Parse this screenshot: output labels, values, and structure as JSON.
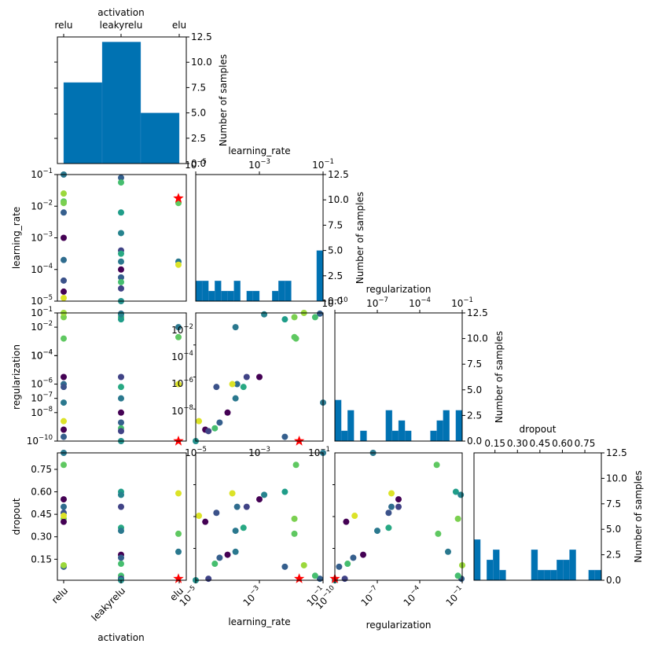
{
  "figure": {
    "type": "pairplot",
    "point_colormap": "viridis",
    "best_marker": "red-star",
    "bar_color": "#0072B2",
    "best_color": "#ff0000"
  },
  "params": {
    "activation": {
      "label": "activation",
      "categories": [
        "relu",
        "leakyrelu",
        "elu"
      ]
    },
    "learning_rate": {
      "label": "learning_rate",
      "scale": "log",
      "lim": [
        -5,
        -1
      ],
      "ticks": [
        -5,
        -3,
        -1
      ]
    },
    "regularization": {
      "label": "regularization",
      "scale": "log",
      "lim": [
        -10,
        -1
      ],
      "ticks": [
        -10,
        -7,
        -4,
        -1
      ]
    },
    "dropout": {
      "label": "dropout",
      "scale": "linear",
      "lim": [
        0.01,
        0.86
      ],
      "ticks": [
        "0.15",
        "0.30",
        "0.45",
        "0.60",
        "0.75"
      ]
    }
  },
  "hist_axis": {
    "label": "Number of samples",
    "ticks": [
      "0.0",
      "2.5",
      "5.0",
      "7.5",
      "10.0",
      "12.5"
    ],
    "ylim": [
      0,
      12.5
    ]
  },
  "chart_data": [
    {
      "type": "bar",
      "panel": "activation-histogram",
      "categories": [
        "relu",
        "leakyrelu",
        "elu"
      ],
      "values": [
        8,
        12,
        5
      ],
      "xlabel": "activation",
      "ylabel": "Number of samples",
      "ylim": [
        0,
        12.5
      ]
    },
    {
      "type": "bar",
      "panel": "learning_rate-histogram",
      "bin_edges_log10": [
        -5,
        -4.8,
        -4.6,
        -4.4,
        -4.2,
        -4,
        -3.8,
        -3.6,
        -3.4,
        -3.2,
        -3,
        -2.8,
        -2.6,
        -2.4,
        -2.2,
        -2,
        -1.8,
        -1.6,
        -1.4,
        -1.2,
        -1
      ],
      "values": [
        2,
        2,
        1,
        2,
        1,
        1,
        2,
        0,
        1,
        1,
        0,
        0,
        1,
        2,
        2,
        0,
        0,
        0,
        0,
        5
      ],
      "xlabel": "learning_rate",
      "ylabel": "Number of samples",
      "ylim": [
        0,
        12.5
      ]
    },
    {
      "type": "bar",
      "panel": "regularization-histogram",
      "bin_edges_log10": [
        -10,
        -9.55,
        -9.1,
        -8.65,
        -8.2,
        -7.75,
        -7.3,
        -6.85,
        -6.4,
        -5.95,
        -5.5,
        -5.05,
        -4.6,
        -4.15,
        -3.7,
        -3.25,
        -2.8,
        -2.35,
        -1.9,
        -1.45,
        -1
      ],
      "values": [
        4,
        1,
        3,
        0,
        1,
        0,
        0,
        0,
        3,
        1,
        2,
        1,
        0,
        0,
        0,
        1,
        2,
        3,
        0,
        3
      ],
      "xlabel": "regularization",
      "ylabel": "Number of samples",
      "ylim": [
        0,
        12.5
      ]
    },
    {
      "type": "bar",
      "panel": "dropout-histogram",
      "bin_edges": [
        0.01,
        0.0525,
        0.095,
        0.1375,
        0.18,
        0.2225,
        0.265,
        0.3075,
        0.35,
        0.3925,
        0.435,
        0.4775,
        0.52,
        0.5625,
        0.605,
        0.6475,
        0.69,
        0.7325,
        0.775,
        0.8175,
        0.86
      ],
      "values": [
        4,
        0,
        2,
        3,
        1,
        0,
        0,
        0,
        0,
        3,
        1,
        1,
        1,
        2,
        2,
        3,
        0,
        0,
        1,
        1
      ],
      "xlabel": "dropout",
      "ylabel": "Number of samples",
      "ylim": [
        0,
        12.5
      ]
    },
    {
      "type": "scatter",
      "panel": "pairwise-scatter",
      "color_by": "objective (viridis 0-1)",
      "points": [
        {
          "activation": "relu",
          "learning_rate": -1.0,
          "regularization": -7.3,
          "dropout": 0.86,
          "c": 0.4
        },
        {
          "activation": "relu",
          "learning_rate": -1.85,
          "regularization": -2.8,
          "dropout": 0.78,
          "c": 0.75
        },
        {
          "activation": "relu",
          "learning_rate": -1.9,
          "regularization": -1.3,
          "dropout": 0.42,
          "c": 0.8
        },
        {
          "activation": "relu",
          "learning_rate": -3.0,
          "regularization": -5.5,
          "dropout": 0.55,
          "c": 0.0
        },
        {
          "activation": "relu",
          "learning_rate": -3.7,
          "regularization": -6.0,
          "dropout": 0.5,
          "c": 0.35
        },
        {
          "activation": "relu",
          "learning_rate": -4.35,
          "regularization": -6.2,
          "dropout": 0.46,
          "c": 0.25
        },
        {
          "activation": "relu",
          "learning_rate": -4.7,
          "regularization": -9.2,
          "dropout": 0.4,
          "c": 0.0
        },
        {
          "activation": "relu",
          "learning_rate": -4.9,
          "regularization": -8.6,
          "dropout": 0.44,
          "c": 0.95
        },
        {
          "activation": "relu",
          "learning_rate": -2.2,
          "regularization": -9.7,
          "dropout": 0.1,
          "c": 0.3
        },
        {
          "activation": "relu",
          "learning_rate": -1.6,
          "regularization": -1.0,
          "dropout": 0.11,
          "c": 0.85
        },
        {
          "activation": "leakyrelu",
          "learning_rate": -1.1,
          "regularization": -1.05,
          "dropout": 0.02,
          "c": 0.3
        },
        {
          "activation": "leakyrelu",
          "learning_rate": -1.25,
          "regularization": -1.3,
          "dropout": 0.04,
          "c": 0.7
        },
        {
          "activation": "leakyrelu",
          "learning_rate": -2.2,
          "regularization": -1.45,
          "dropout": 0.6,
          "c": 0.55
        },
        {
          "activation": "leakyrelu",
          "learning_rate": -2.85,
          "regularization": -1.1,
          "dropout": 0.58,
          "c": 0.45
        },
        {
          "activation": "leakyrelu",
          "learning_rate": -3.4,
          "regularization": -5.5,
          "dropout": 0.5,
          "c": 0.2
        },
        {
          "activation": "leakyrelu",
          "learning_rate": -3.5,
          "regularization": -6.2,
          "dropout": 0.36,
          "c": 0.6
        },
        {
          "activation": "leakyrelu",
          "learning_rate": -3.75,
          "regularization": -7.0,
          "dropout": 0.34,
          "c": 0.4
        },
        {
          "activation": "leakyrelu",
          "learning_rate": -4.0,
          "regularization": -8.0,
          "dropout": 0.18,
          "c": 0.0
        },
        {
          "activation": "leakyrelu",
          "learning_rate": -4.25,
          "regularization": -8.7,
          "dropout": 0.16,
          "c": 0.3
        },
        {
          "activation": "leakyrelu",
          "learning_rate": -4.4,
          "regularization": -9.1,
          "dropout": 0.12,
          "c": 0.7
        },
        {
          "activation": "leakyrelu",
          "learning_rate": -4.6,
          "regularization": -9.3,
          "dropout": 0.02,
          "c": 0.2
        },
        {
          "activation": "leakyrelu",
          "learning_rate": -5.0,
          "regularization": -10.0,
          "dropout": 0.01,
          "c": 0.5
        },
        {
          "activation": "elu",
          "learning_rate": -1.9,
          "regularization": -2.7,
          "dropout": 0.32,
          "c": 0.75
        },
        {
          "activation": "elu",
          "learning_rate": -3.75,
          "regularization": -2.0,
          "dropout": 0.2,
          "c": 0.4
        },
        {
          "activation": "elu",
          "learning_rate": -3.85,
          "regularization": -6.0,
          "dropout": 0.59,
          "c": 0.95
        }
      ],
      "best": {
        "activation": "elu",
        "learning_rate": -1.75,
        "regularization": -10.0,
        "dropout": 0.02
      }
    }
  ]
}
